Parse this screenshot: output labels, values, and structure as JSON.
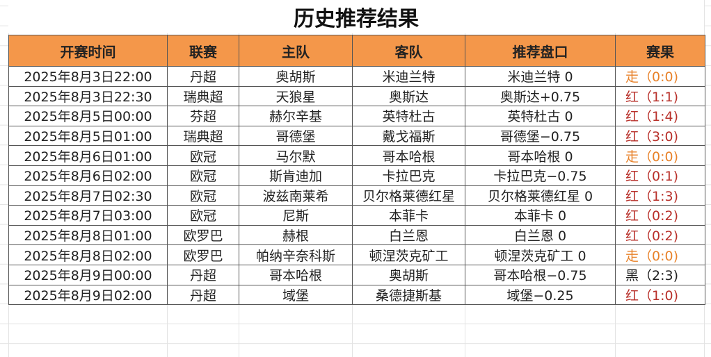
{
  "title": "历史推荐结果",
  "colors": {
    "header_bg": "#f4974a",
    "红": "#b8302a",
    "走": "#e8822a",
    "黑": "#222222"
  },
  "columns": [
    "开赛时间",
    "联赛",
    "主队",
    "客队",
    "推荐盘口",
    "赛果"
  ],
  "rows": [
    {
      "time": "2025年8月3日22:00",
      "league": "丹超",
      "home": "奥胡斯",
      "away": "米迪兰特",
      "pick": "米迪兰特 0",
      "result": "走（0:0)",
      "status": "走"
    },
    {
      "time": "2025年8月3日22:30",
      "league": "瑞典超",
      "home": "天狼星",
      "away": "奥斯达",
      "pick": "奥斯达+0.75",
      "result": "红（1:1)",
      "status": "红"
    },
    {
      "time": "2025年8月5日00:00",
      "league": "芬超",
      "home": "赫尔辛基",
      "away": "英特杜古",
      "pick": "英特杜古 0",
      "result": "红（1:4)",
      "status": "红"
    },
    {
      "time": "2025年8月5日01:00",
      "league": "瑞典超",
      "home": "哥德堡",
      "away": "戴戈福斯",
      "pick": "哥德堡−0.75",
      "result": "红（3:0)",
      "status": "红"
    },
    {
      "time": "2025年8月6日01:00",
      "league": "欧冠",
      "home": "马尔默",
      "away": "哥本哈根",
      "pick": "哥本哈根 0",
      "result": "走（0:0)",
      "status": "走"
    },
    {
      "time": "2025年8月6日02:00",
      "league": "欧冠",
      "home": "斯肯迪加",
      "away": "卡拉巴克",
      "pick": "卡拉巴克−0.75",
      "result": "红（0:1)",
      "status": "红"
    },
    {
      "time": "2025年8月7日02:30",
      "league": "欧冠",
      "home": "波兹南莱希",
      "away": "贝尔格莱德红星",
      "pick": "贝尔格莱德红星 0",
      "result": "红（1:3)",
      "status": "红"
    },
    {
      "time": "2025年8月7日03:00",
      "league": "欧冠",
      "home": "尼斯",
      "away": "本菲卡",
      "pick": "本菲卡 0",
      "result": "红（0:2)",
      "status": "红"
    },
    {
      "time": "2025年8月8日01:00",
      "league": "欧罗巴",
      "home": "赫根",
      "away": "白兰恩",
      "pick": "白兰恩 0",
      "result": "红（0:2)",
      "status": "红"
    },
    {
      "time": "2025年8月8日02:00",
      "league": "欧罗巴",
      "home": "帕纳辛奈科斯",
      "away": "顿涅茨克矿工",
      "pick": "顿涅茨克矿工 0",
      "result": "走（0:0)",
      "status": "走"
    },
    {
      "time": "2025年8月9日00:00",
      "league": "丹超",
      "home": "哥本哈根",
      "away": "奥胡斯",
      "pick": "哥本哈根−0.75",
      "result": "黑（2:3)",
      "status": "黑"
    },
    {
      "time": "2025年8月9日02:00",
      "league": "丹超",
      "home": "域堡",
      "away": "桑德捷斯基",
      "pick": "域堡−0.25",
      "result": "红（1:0)",
      "status": "红"
    }
  ]
}
